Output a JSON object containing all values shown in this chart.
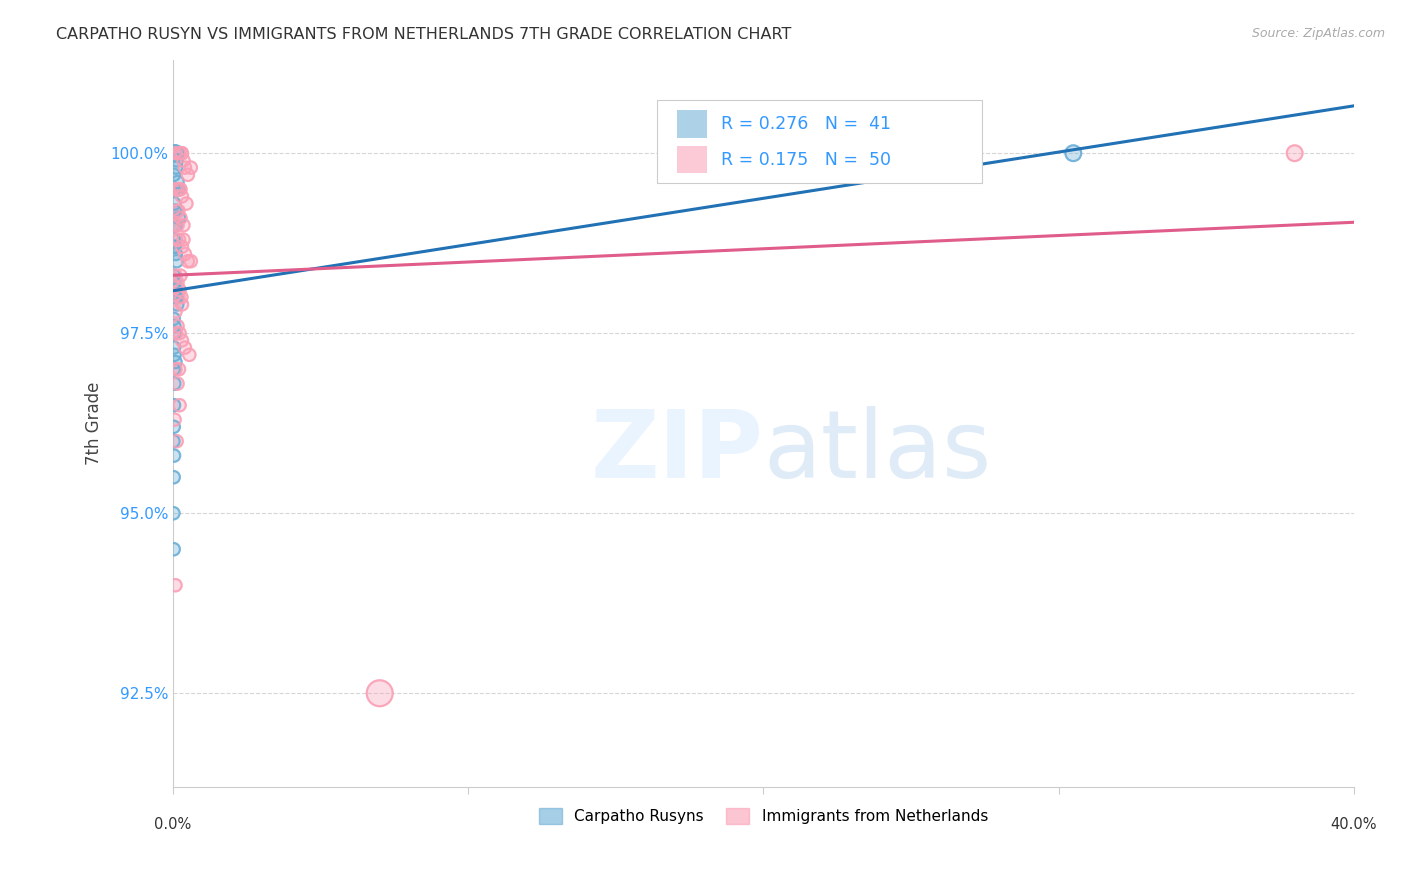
{
  "title": "CARPATHO RUSYN VS IMMIGRANTS FROM NETHERLANDS 7TH GRADE CORRELATION CHART",
  "source": "Source: ZipAtlas.com",
  "ylabel": "7th Grade",
  "y_ticks": [
    92.5,
    95.0,
    97.5,
    100.0
  ],
  "y_tick_labels": [
    "92.5%",
    "95.0%",
    "97.5%",
    "100.0%"
  ],
  "xlim": [
    0.0,
    40.0
  ],
  "ylim": [
    91.2,
    101.3
  ],
  "blue_R": 0.276,
  "blue_N": 41,
  "pink_R": 0.175,
  "pink_N": 50,
  "blue_color": "#6baed6",
  "pink_color": "#fa9fb5",
  "blue_line_color": "#2171b5",
  "pink_line_color": "#e05c8a",
  "legend_blue_label": "Carpatho Rusyns",
  "legend_pink_label": "Immigrants from Netherlands",
  "blue_scatter_x": [
    0.05,
    0.08,
    0.1,
    0.12,
    0.03,
    0.06,
    0.09,
    0.15,
    0.18,
    0.04,
    0.07,
    0.1,
    0.2,
    0.05,
    0.08,
    0.02,
    0.04,
    0.06,
    0.09,
    0.12,
    0.03,
    0.05,
    0.08,
    0.11,
    0.14,
    0.02,
    0.04,
    0.06,
    0.03,
    0.05,
    0.08,
    0.02,
    0.04,
    0.03,
    0.02,
    0.01,
    0.03,
    0.02,
    0.01,
    0.02,
    30.5
  ],
  "blue_scatter_y": [
    100.0,
    100.0,
    99.8,
    99.9,
    99.7,
    99.5,
    99.5,
    99.6,
    99.5,
    99.3,
    99.2,
    99.2,
    99.1,
    99.0,
    99.0,
    98.8,
    98.7,
    98.7,
    98.6,
    98.5,
    98.3,
    98.2,
    98.1,
    98.0,
    97.9,
    97.7,
    97.6,
    97.5,
    97.3,
    97.2,
    97.1,
    97.0,
    96.8,
    96.5,
    96.2,
    96.0,
    95.8,
    95.5,
    95.0,
    94.5,
    100.0
  ],
  "blue_scatter_s": [
    130,
    130,
    80,
    80,
    80,
    80,
    80,
    80,
    80,
    80,
    80,
    80,
    80,
    80,
    80,
    80,
    80,
    80,
    80,
    80,
    80,
    80,
    80,
    80,
    80,
    80,
    80,
    80,
    80,
    80,
    80,
    80,
    80,
    80,
    80,
    80,
    80,
    80,
    80,
    80,
    130
  ],
  "pink_scatter_x": [
    0.1,
    0.2,
    0.28,
    0.3,
    0.35,
    0.4,
    0.5,
    0.6,
    0.08,
    0.15,
    0.22,
    0.3,
    0.45,
    0.12,
    0.18,
    0.25,
    0.35,
    0.05,
    0.1,
    0.2,
    0.3,
    0.4,
    0.5,
    0.6,
    0.08,
    0.15,
    0.22,
    0.3,
    0.08,
    0.15,
    0.22,
    0.3,
    0.4,
    0.55,
    0.08,
    0.15,
    0.22,
    0.05,
    0.12,
    0.08,
    0.25,
    0.18,
    0.28,
    0.1,
    0.2,
    0.15,
    0.25,
    0.35,
    7.0,
    38.0
  ],
  "pink_scatter_y": [
    100.0,
    100.0,
    100.0,
    100.0,
    99.9,
    99.8,
    99.7,
    99.8,
    99.5,
    99.5,
    99.5,
    99.4,
    99.3,
    99.2,
    99.2,
    99.1,
    99.0,
    99.0,
    98.8,
    98.8,
    98.7,
    98.6,
    98.5,
    98.5,
    98.3,
    98.2,
    98.1,
    97.9,
    97.8,
    97.6,
    97.5,
    97.4,
    97.3,
    97.2,
    97.0,
    96.8,
    96.5,
    96.3,
    96.0,
    94.0,
    98.3,
    98.0,
    98.0,
    97.5,
    97.0,
    99.0,
    99.5,
    98.8,
    92.5,
    100.0
  ],
  "pink_scatter_s": [
    80,
    80,
    80,
    80,
    80,
    80,
    80,
    80,
    80,
    80,
    80,
    80,
    80,
    80,
    80,
    80,
    80,
    80,
    80,
    80,
    80,
    80,
    80,
    80,
    80,
    80,
    80,
    80,
    80,
    80,
    80,
    80,
    80,
    80,
    80,
    80,
    80,
    80,
    80,
    80,
    80,
    80,
    80,
    80,
    80,
    80,
    80,
    80,
    350,
    130
  ]
}
